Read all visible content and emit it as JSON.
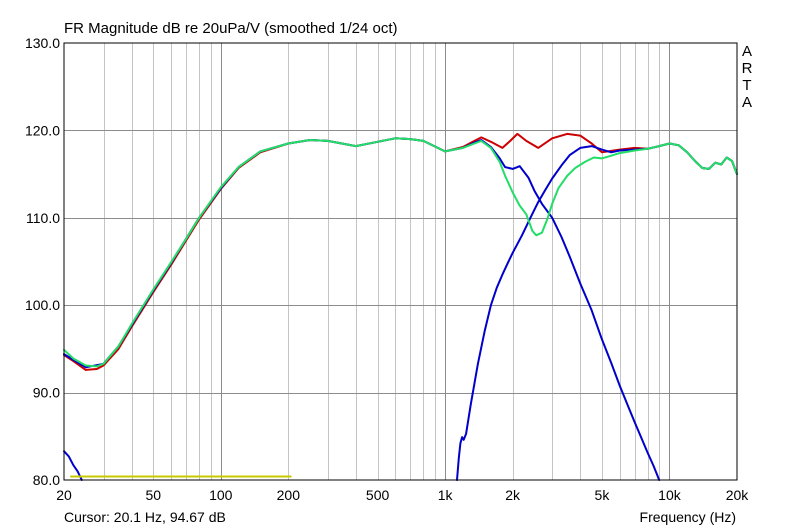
{
  "window": {
    "cursor_readout": "Cursor: 20.1 Hz, 94.67 dB",
    "brand_letters": [
      "A",
      "R",
      "T",
      "A"
    ]
  },
  "chart_data": {
    "type": "line",
    "title": "FR Magnitude dB re 20uPa/V (smoothed 1/24 oct)",
    "xlabel": "Frequency (Hz)",
    "ylabel": "",
    "x_scale": "log",
    "xlim": [
      20,
      20000
    ],
    "ylim": [
      80,
      130
    ],
    "grid": true,
    "x_tick_labels": [
      {
        "value": 20,
        "label": "20"
      },
      {
        "value": 50,
        "label": "50"
      },
      {
        "value": 100,
        "label": "100"
      },
      {
        "value": 200,
        "label": "200"
      },
      {
        "value": 500,
        "label": "500"
      },
      {
        "value": 1000,
        "label": "1k"
      },
      {
        "value": 2000,
        "label": "2k"
      },
      {
        "value": 5000,
        "label": "5k"
      },
      {
        "value": 10000,
        "label": "10k"
      },
      {
        "value": 20000,
        "label": "20k"
      }
    ],
    "y_tick_labels": [
      {
        "value": 80,
        "label": "80.0"
      },
      {
        "value": 90,
        "label": "90.0"
      },
      {
        "value": 100,
        "label": "100.0"
      },
      {
        "value": 110,
        "label": "110.0"
      },
      {
        "value": 120,
        "label": "120.0"
      },
      {
        "value": 130,
        "label": "130.0"
      }
    ],
    "series": [
      {
        "color": "#cc0000",
        "points": [
          [
            20,
            94.3
          ],
          [
            22,
            93.6
          ],
          [
            25,
            92.6
          ],
          [
            28,
            92.7
          ],
          [
            30,
            93.1
          ],
          [
            35,
            95.0
          ],
          [
            40,
            97.5
          ],
          [
            50,
            101.5
          ],
          [
            60,
            104.6
          ],
          [
            70,
            107.4
          ],
          [
            80,
            109.8
          ],
          [
            100,
            113.3
          ],
          [
            120,
            115.7
          ],
          [
            150,
            117.5
          ],
          [
            200,
            118.5
          ],
          [
            250,
            118.9
          ],
          [
            300,
            118.8
          ],
          [
            400,
            118.2
          ],
          [
            500,
            118.7
          ],
          [
            600,
            119.1
          ],
          [
            700,
            119.0
          ],
          [
            800,
            118.8
          ],
          [
            1000,
            117.6
          ],
          [
            1200,
            118.1
          ],
          [
            1350,
            118.8
          ],
          [
            1450,
            119.2
          ],
          [
            1600,
            118.7
          ],
          [
            1800,
            118.0
          ],
          [
            1950,
            118.8
          ],
          [
            2100,
            119.6
          ],
          [
            2300,
            118.8
          ],
          [
            2600,
            118.0
          ],
          [
            3000,
            119.1
          ],
          [
            3500,
            119.6
          ],
          [
            4000,
            119.4
          ],
          [
            4500,
            118.5
          ],
          [
            5000,
            117.5
          ],
          [
            6000,
            117.8
          ],
          [
            7000,
            118.0
          ],
          [
            8000,
            117.9
          ],
          [
            9000,
            118.2
          ],
          [
            10000,
            118.5
          ],
          [
            11000,
            118.3
          ],
          [
            12000,
            117.5
          ],
          [
            13000,
            116.5
          ],
          [
            14000,
            115.7
          ],
          [
            15000,
            115.6
          ],
          [
            16000,
            116.3
          ],
          [
            17000,
            116.1
          ],
          [
            18000,
            116.9
          ],
          [
            19000,
            116.5
          ],
          [
            20000,
            115.0
          ]
        ]
      },
      {
        "color": "#0000cc",
        "points": [
          [
            20,
            94.4
          ],
          [
            25,
            92.9
          ],
          [
            30,
            93.3
          ],
          [
            35,
            95.3
          ],
          [
            40,
            97.7
          ],
          [
            50,
            101.7
          ],
          [
            60,
            104.8
          ],
          [
            70,
            107.6
          ],
          [
            80,
            110.0
          ],
          [
            100,
            113.4
          ],
          [
            120,
            115.8
          ],
          [
            150,
            117.6
          ],
          [
            200,
            118.5
          ],
          [
            250,
            118.9
          ],
          [
            300,
            118.8
          ],
          [
            400,
            118.2
          ],
          [
            500,
            118.7
          ],
          [
            600,
            119.1
          ],
          [
            700,
            119.0
          ],
          [
            800,
            118.8
          ],
          [
            1000,
            117.6
          ],
          [
            1200,
            118.0
          ],
          [
            1350,
            118.6
          ],
          [
            1450,
            118.9
          ],
          [
            1600,
            118.1
          ],
          [
            1750,
            116.8
          ],
          [
            1850,
            115.8
          ],
          [
            2000,
            115.6
          ],
          [
            2150,
            115.9
          ],
          [
            2350,
            114.6
          ],
          [
            2500,
            113.1
          ],
          [
            2700,
            111.6
          ],
          [
            3000,
            110.0
          ],
          [
            3300,
            107.8
          ],
          [
            3600,
            105.5
          ],
          [
            4000,
            102.5
          ],
          [
            4500,
            99.4
          ],
          [
            5000,
            96.1
          ],
          [
            5500,
            93.4
          ],
          [
            6000,
            90.8
          ],
          [
            6500,
            88.6
          ],
          [
            7000,
            86.6
          ],
          [
            7500,
            84.8
          ],
          [
            8000,
            83.1
          ],
          [
            8500,
            81.6
          ],
          [
            9000,
            80.0
          ]
        ]
      },
      {
        "color": "#0000cc",
        "points": [
          [
            1130,
            80.0
          ],
          [
            1150,
            82.5
          ],
          [
            1170,
            84.2
          ],
          [
            1190,
            84.9
          ],
          [
            1210,
            84.6
          ],
          [
            1240,
            85.3
          ],
          [
            1300,
            88.6
          ],
          [
            1400,
            93.3
          ],
          [
            1500,
            97.0
          ],
          [
            1600,
            100.0
          ],
          [
            1700,
            102.0
          ],
          [
            1800,
            103.5
          ],
          [
            1900,
            104.8
          ],
          [
            2000,
            106.0
          ],
          [
            2200,
            108.0
          ],
          [
            2400,
            110.0
          ],
          [
            2600,
            111.8
          ],
          [
            2800,
            113.2
          ],
          [
            3000,
            114.5
          ],
          [
            3300,
            116.0
          ],
          [
            3600,
            117.2
          ],
          [
            4000,
            118.0
          ],
          [
            4500,
            118.2
          ],
          [
            5000,
            117.8
          ],
          [
            5500,
            117.5
          ],
          [
            6000,
            117.7
          ],
          [
            7000,
            117.8
          ],
          [
            8000,
            117.9
          ],
          [
            9000,
            118.2
          ],
          [
            10000,
            118.5
          ],
          [
            11000,
            118.3
          ],
          [
            12000,
            117.5
          ],
          [
            13000,
            116.5
          ],
          [
            14000,
            115.7
          ],
          [
            15000,
            115.6
          ],
          [
            16000,
            116.3
          ],
          [
            17000,
            116.1
          ],
          [
            18000,
            116.9
          ],
          [
            19000,
            116.5
          ],
          [
            20000,
            115.0
          ]
        ]
      },
      {
        "color": "#22dd66",
        "points": [
          [
            20,
            94.9
          ],
          [
            22,
            93.9
          ],
          [
            25,
            93.1
          ],
          [
            28,
            93.0
          ],
          [
            30,
            93.3
          ],
          [
            35,
            95.3
          ],
          [
            40,
            97.8
          ],
          [
            50,
            101.8
          ],
          [
            60,
            104.9
          ],
          [
            70,
            107.6
          ],
          [
            80,
            110.0
          ],
          [
            100,
            113.5
          ],
          [
            120,
            115.8
          ],
          [
            150,
            117.6
          ],
          [
            200,
            118.5
          ],
          [
            250,
            118.9
          ],
          [
            300,
            118.8
          ],
          [
            400,
            118.2
          ],
          [
            500,
            118.7
          ],
          [
            600,
            119.1
          ],
          [
            700,
            119.0
          ],
          [
            800,
            118.8
          ],
          [
            1000,
            117.6
          ],
          [
            1200,
            118.0
          ],
          [
            1350,
            118.5
          ],
          [
            1450,
            118.8
          ],
          [
            1600,
            118.0
          ],
          [
            1750,
            116.4
          ],
          [
            1850,
            114.8
          ],
          [
            2000,
            112.9
          ],
          [
            2150,
            111.4
          ],
          [
            2300,
            110.4
          ],
          [
            2450,
            108.5
          ],
          [
            2550,
            108.0
          ],
          [
            2700,
            108.3
          ],
          [
            2850,
            109.8
          ],
          [
            3000,
            111.6
          ],
          [
            3200,
            113.4
          ],
          [
            3500,
            114.8
          ],
          [
            3800,
            115.7
          ],
          [
            4200,
            116.4
          ],
          [
            4600,
            116.9
          ],
          [
            5000,
            116.8
          ],
          [
            5500,
            117.1
          ],
          [
            6000,
            117.4
          ],
          [
            7000,
            117.7
          ],
          [
            8000,
            117.9
          ],
          [
            9000,
            118.2
          ],
          [
            10000,
            118.5
          ],
          [
            11000,
            118.3
          ],
          [
            12000,
            117.5
          ],
          [
            13000,
            116.5
          ],
          [
            14000,
            115.7
          ],
          [
            15000,
            115.6
          ],
          [
            16000,
            116.3
          ],
          [
            17000,
            116.1
          ],
          [
            18000,
            116.9
          ],
          [
            19000,
            116.5
          ],
          [
            20000,
            115.0
          ]
        ]
      },
      {
        "color": "#0000cc",
        "points": [
          [
            20,
            83.3
          ],
          [
            21,
            82.7
          ],
          [
            22,
            81.7
          ],
          [
            23,
            81.0
          ],
          [
            24,
            80.0
          ]
        ]
      },
      {
        "color": "#c8c800",
        "points": [
          [
            21.5,
            80.4
          ],
          [
            205,
            80.4
          ]
        ]
      }
    ]
  }
}
